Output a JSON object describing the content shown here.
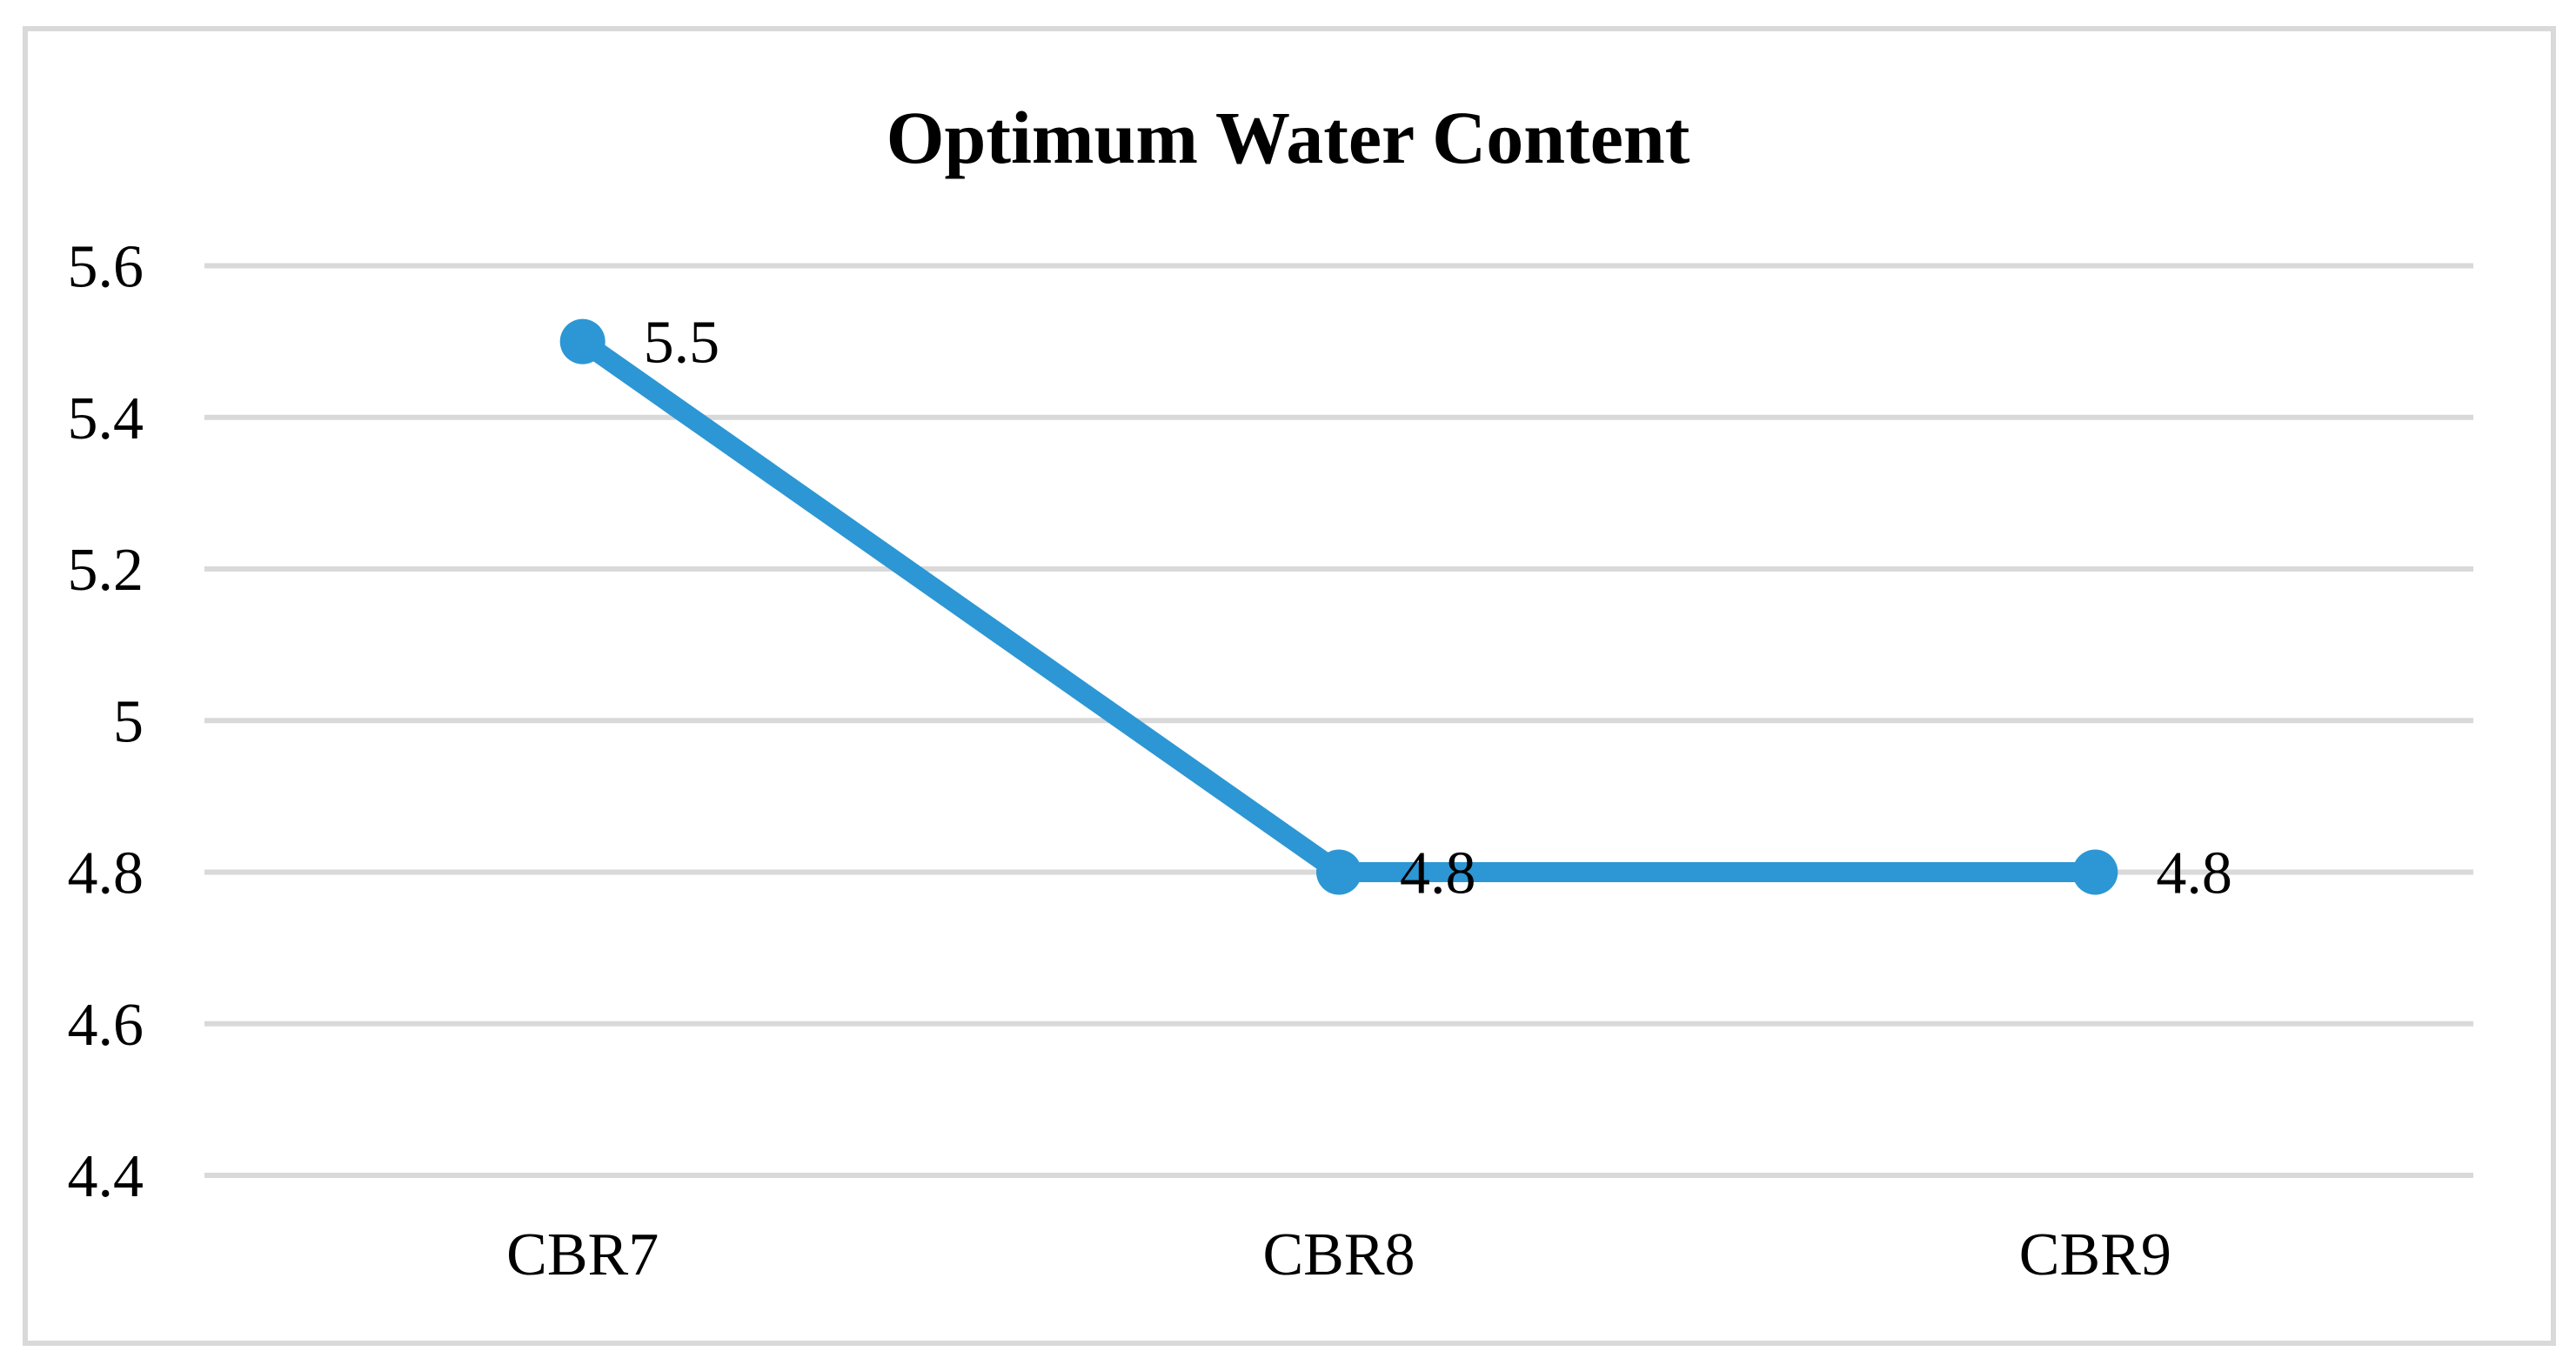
{
  "figure": {
    "background": "#FFFFFF",
    "border_color": "#D9D9D9"
  },
  "chart_data": {
    "type": "line",
    "title": "Optimum Water Content",
    "categories": [
      "CBR7",
      "CBR8",
      "CBR9"
    ],
    "series": [
      {
        "name": "Optimum Water Content",
        "values": [
          5.5,
          4.8,
          4.8
        ],
        "data_labels": [
          "5.5",
          "4.8",
          "4.8"
        ],
        "color": "#2C97D4",
        "marker": "circle"
      }
    ],
    "xlabel": "",
    "ylabel": "",
    "ylim": [
      4.4,
      5.6
    ],
    "y_tick_step": 0.2,
    "y_tick_labels": [
      "5.6",
      "5.4",
      "5.2",
      "5",
      "4.8",
      "4.6",
      "4.4"
    ],
    "grid": "horizontal",
    "gridline_color": "#D9D9D9",
    "legend": "none",
    "text_color": "#000000"
  }
}
